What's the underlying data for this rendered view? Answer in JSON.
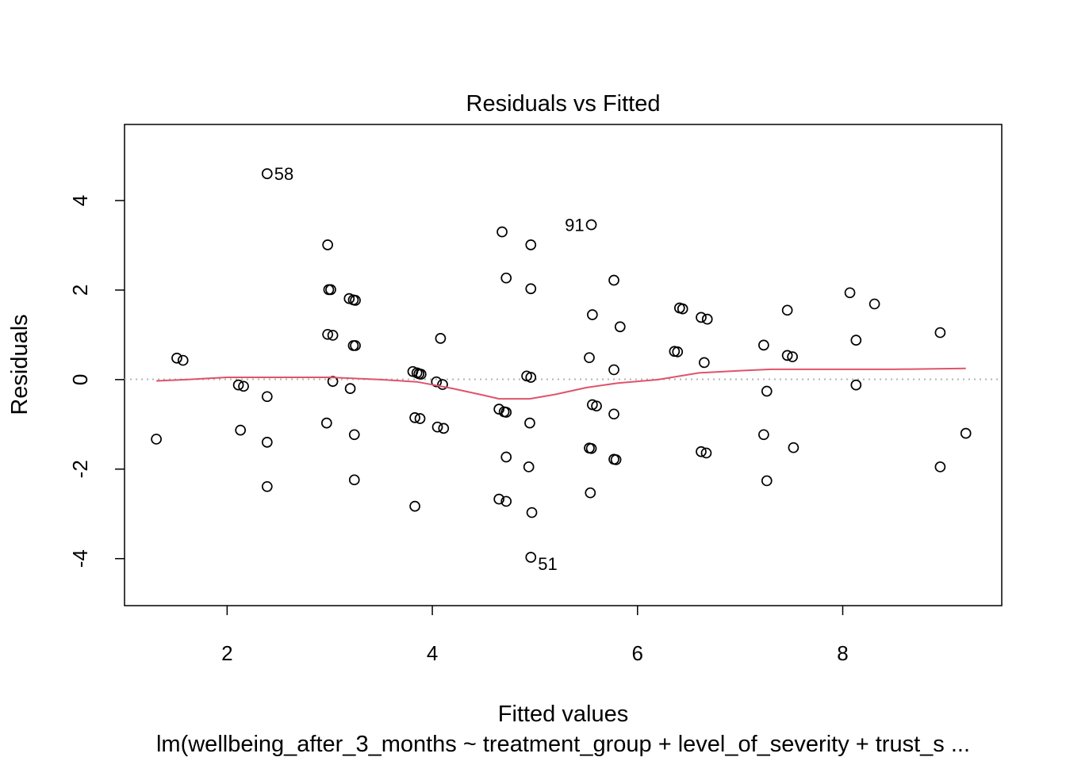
{
  "chart_data": {
    "type": "scatter",
    "title": "Residuals vs Fitted",
    "xlabel": "Fitted values",
    "ylabel": "Residuals",
    "subtitle": "lm(wellbeing_after_3_months ~ treatment_group + level_of_severity + trust_s ...",
    "xlim": [
      1.0,
      9.55
    ],
    "ylim": [
      -5.05,
      5.7
    ],
    "x_ticks": [
      2,
      4,
      6,
      8
    ],
    "x_tick_labels": [
      "2",
      "4",
      "6",
      "8"
    ],
    "y_ticks": [
      -4,
      -2,
      0,
      2,
      4
    ],
    "y_tick_labels": [
      "-4",
      "-2",
      "0",
      "2",
      "4"
    ],
    "reference_line_y": 0,
    "points": [
      {
        "x": 1.31,
        "y": -1.33
      },
      {
        "x": 1.51,
        "y": 0.48
      },
      {
        "x": 1.57,
        "y": 0.43
      },
      {
        "x": 2.11,
        "y": -0.12
      },
      {
        "x": 2.16,
        "y": -0.15
      },
      {
        "x": 2.13,
        "y": -1.13
      },
      {
        "x": 2.39,
        "y": -0.38
      },
      {
        "x": 2.39,
        "y": -1.4
      },
      {
        "x": 2.39,
        "y": -2.39
      },
      {
        "x": 2.39,
        "y": 4.6,
        "label": "58"
      },
      {
        "x": 2.98,
        "y": 3.01
      },
      {
        "x": 2.99,
        "y": 2.01
      },
      {
        "x": 3.01,
        "y": 2.01
      },
      {
        "x": 2.98,
        "y": 1.01
      },
      {
        "x": 3.03,
        "y": 0.99
      },
      {
        "x": 3.03,
        "y": -0.04
      },
      {
        "x": 2.97,
        "y": -0.97
      },
      {
        "x": 3.19,
        "y": 1.81
      },
      {
        "x": 3.23,
        "y": 1.78
      },
      {
        "x": 3.25,
        "y": 1.77
      },
      {
        "x": 3.23,
        "y": 0.76
      },
      {
        "x": 3.25,
        "y": 0.76
      },
      {
        "x": 3.2,
        "y": -0.2
      },
      {
        "x": 3.24,
        "y": -1.23
      },
      {
        "x": 3.24,
        "y": -2.24
      },
      {
        "x": 3.81,
        "y": 0.18
      },
      {
        "x": 3.85,
        "y": 0.15
      },
      {
        "x": 3.87,
        "y": 0.13
      },
      {
        "x": 3.89,
        "y": 0.12
      },
      {
        "x": 3.83,
        "y": -0.85
      },
      {
        "x": 3.88,
        "y": -0.87
      },
      {
        "x": 3.83,
        "y": -2.83
      },
      {
        "x": 4.04,
        "y": -0.05
      },
      {
        "x": 4.1,
        "y": -0.11
      },
      {
        "x": 4.08,
        "y": 0.92
      },
      {
        "x": 4.05,
        "y": -1.06
      },
      {
        "x": 4.11,
        "y": -1.09
      },
      {
        "x": 4.65,
        "y": -0.66
      },
      {
        "x": 4.7,
        "y": -0.72
      },
      {
        "x": 4.72,
        "y": -0.73
      },
      {
        "x": 4.68,
        "y": 3.3
      },
      {
        "x": 4.72,
        "y": 2.27
      },
      {
        "x": 4.72,
        "y": -1.73
      },
      {
        "x": 4.65,
        "y": -2.67
      },
      {
        "x": 4.72,
        "y": -2.72
      },
      {
        "x": 4.92,
        "y": 0.08
      },
      {
        "x": 4.96,
        "y": 0.05
      },
      {
        "x": 4.96,
        "y": 3.01
      },
      {
        "x": 4.96,
        "y": 2.03
      },
      {
        "x": 4.95,
        "y": -0.97
      },
      {
        "x": 4.94,
        "y": -1.95
      },
      {
        "x": 4.97,
        "y": -2.97
      },
      {
        "x": 4.96,
        "y": -3.97,
        "label": "51"
      },
      {
        "x": 5.55,
        "y": 3.46,
        "label": "91"
      },
      {
        "x": 5.56,
        "y": 1.45
      },
      {
        "x": 5.53,
        "y": 0.49
      },
      {
        "x": 5.53,
        "y": -1.53
      },
      {
        "x": 5.55,
        "y": -1.54
      },
      {
        "x": 5.54,
        "y": -2.53
      },
      {
        "x": 5.56,
        "y": -0.56
      },
      {
        "x": 5.6,
        "y": -0.59
      },
      {
        "x": 5.77,
        "y": 2.22
      },
      {
        "x": 5.83,
        "y": 1.18
      },
      {
        "x": 5.77,
        "y": 0.22
      },
      {
        "x": 5.77,
        "y": -0.77
      },
      {
        "x": 5.77,
        "y": -1.78
      },
      {
        "x": 5.79,
        "y": -1.79
      },
      {
        "x": 6.36,
        "y": 0.63
      },
      {
        "x": 6.39,
        "y": 0.62
      },
      {
        "x": 6.41,
        "y": 1.6
      },
      {
        "x": 6.44,
        "y": 1.58
      },
      {
        "x": 6.62,
        "y": 1.39
      },
      {
        "x": 6.68,
        "y": 1.35
      },
      {
        "x": 6.65,
        "y": 0.38
      },
      {
        "x": 6.62,
        "y": -1.61
      },
      {
        "x": 6.67,
        "y": -1.64
      },
      {
        "x": 7.23,
        "y": 0.77
      },
      {
        "x": 7.26,
        "y": -0.26
      },
      {
        "x": 7.23,
        "y": -1.23
      },
      {
        "x": 7.26,
        "y": -2.26
      },
      {
        "x": 7.46,
        "y": 1.55
      },
      {
        "x": 7.46,
        "y": 0.54
      },
      {
        "x": 7.51,
        "y": 0.51
      },
      {
        "x": 7.52,
        "y": -1.52
      },
      {
        "x": 8.07,
        "y": 1.94
      },
      {
        "x": 8.31,
        "y": 1.69
      },
      {
        "x": 8.13,
        "y": 0.88
      },
      {
        "x": 8.13,
        "y": -0.12
      },
      {
        "x": 8.95,
        "y": 1.05
      },
      {
        "x": 8.95,
        "y": -1.95
      },
      {
        "x": 9.2,
        "y": -1.2
      }
    ],
    "smooth_line": {
      "x": [
        1.31,
        1.6,
        2.0,
        2.4,
        3.0,
        3.5,
        3.85,
        4.2,
        4.5,
        4.65,
        4.95,
        5.2,
        5.5,
        5.8,
        6.2,
        6.6,
        7.0,
        7.3,
        7.6,
        8.0,
        8.5,
        9.2
      ],
      "y": [
        -0.03,
        0.0,
        0.05,
        0.05,
        0.05,
        0.0,
        -0.05,
        -0.2,
        -0.35,
        -0.43,
        -0.43,
        -0.33,
        -0.18,
        -0.08,
        0.0,
        0.15,
        0.2,
        0.23,
        0.23,
        0.23,
        0.23,
        0.25
      ]
    }
  }
}
